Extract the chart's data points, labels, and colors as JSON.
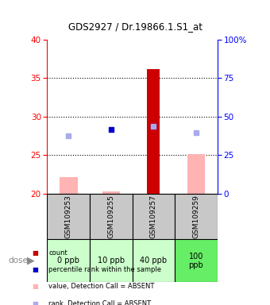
{
  "title": "GDS2927 / Dr.19866.1.S1_at",
  "samples": [
    "GSM109253",
    "GSM109255",
    "GSM109257",
    "GSM109259"
  ],
  "doses": [
    "0 ppb",
    "10 ppb",
    "40 ppb",
    "100\nppb"
  ],
  "ylim_left": [
    20,
    40
  ],
  "ylim_right": [
    0,
    100
  ],
  "yticks_left": [
    20,
    25,
    30,
    35,
    40
  ],
  "yticks_right": [
    0,
    25,
    50,
    75,
    100
  ],
  "red_bar_values": [
    22.2,
    20.3,
    36.2,
    25.1
  ],
  "red_bar_presence": [
    false,
    false,
    true,
    false
  ],
  "pink_bar_values": [
    22.2,
    20.3,
    null,
    25.1
  ],
  "red_bar_base": 20,
  "dark_blue_squares": [
    null,
    28.3,
    28.8,
    null
  ],
  "light_blue_squares": [
    27.5,
    null,
    28.8,
    27.9
  ],
  "red_color": "#cc0000",
  "pink_color": "#ffb3b3",
  "dark_blue_color": "#0000cc",
  "light_blue_color": "#aaaaee",
  "gray_bg": "#c8c8c8",
  "dose_bg_colors": [
    "#ccffcc",
    "#ccffcc",
    "#ccffcc",
    "#66ee66"
  ]
}
